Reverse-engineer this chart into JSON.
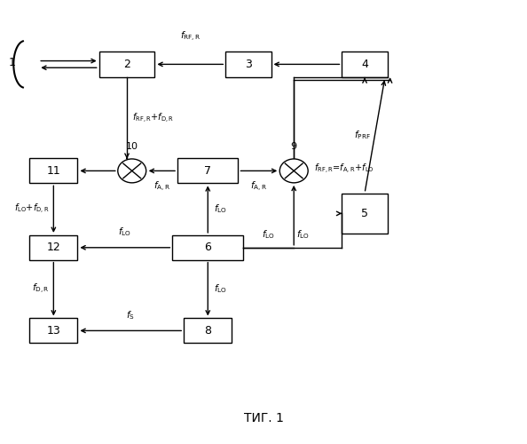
{
  "bg_color": "#ffffff",
  "caption": "ΤИГ. 1",
  "lw": 1.0,
  "fs": 9,
  "fs_small": 7.5,
  "block_positions": {
    "2": [
      0.23,
      0.87,
      0.11,
      0.062
    ],
    "3": [
      0.47,
      0.87,
      0.09,
      0.062
    ],
    "4": [
      0.7,
      0.87,
      0.09,
      0.062
    ],
    "11": [
      0.085,
      0.62,
      0.095,
      0.058
    ],
    "7": [
      0.39,
      0.62,
      0.12,
      0.058
    ],
    "5": [
      0.7,
      0.52,
      0.09,
      0.095
    ],
    "12": [
      0.085,
      0.44,
      0.095,
      0.058
    ],
    "6": [
      0.39,
      0.44,
      0.14,
      0.058
    ],
    "13": [
      0.085,
      0.245,
      0.095,
      0.058
    ],
    "8": [
      0.39,
      0.245,
      0.095,
      0.058
    ]
  },
  "mult_positions": {
    "10": [
      0.24,
      0.62,
      0.028
    ],
    "9": [
      0.56,
      0.62,
      0.028
    ]
  }
}
